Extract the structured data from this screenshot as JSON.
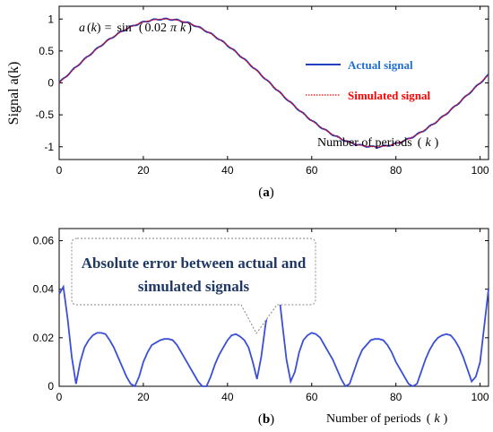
{
  "chart_data": [
    {
      "panel": "a",
      "type": "line",
      "equation": {
        "lhs_fn": "a",
        "lhs_var": "k",
        "rhs_fn": "sin",
        "coef": "0.02",
        "pi": "π",
        "var": "k"
      },
      "ylabel": "Signal a(k)",
      "xlabel_text": "Number of periods",
      "xlabel_var": "k",
      "xlim": [
        0,
        102
      ],
      "ylim": [
        -1.2,
        1.2
      ],
      "xticks": [
        0,
        20,
        40,
        60,
        80,
        100
      ],
      "yticks": [
        -1,
        -0.5,
        0,
        0.5,
        1
      ],
      "ytick_labels": [
        "-1",
        "-0.5",
        "0",
        "0.5",
        "1"
      ],
      "legend_position": "center-right",
      "series": [
        {
          "name": "Actual signal",
          "color": "#1f3fbf",
          "style": "solid",
          "function": "sin(0.02*pi*k)",
          "k_range": [
            0,
            102
          ]
        },
        {
          "name": "Simulated signal",
          "color": "#ff0000",
          "style": "dotted",
          "function": "sin(0.02*pi*k)",
          "k_range": [
            0,
            102
          ]
        }
      ],
      "label": "(a)",
      "label_letter": "a"
    },
    {
      "panel": "b",
      "type": "line",
      "xlabel_text": "Number of periods",
      "xlabel_var": "k",
      "xlim": [
        0,
        102
      ],
      "ylim": [
        0,
        0.065
      ],
      "xticks": [
        0,
        20,
        40,
        60,
        80,
        100
      ],
      "yticks": [
        0,
        0.02,
        0.04,
        0.06
      ],
      "ytick_labels": [
        "0",
        "0.02",
        "0.04",
        "0.06"
      ],
      "annotation_line1": "Absolute error between actual and",
      "annotation_line2": "simulated signals",
      "series": [
        {
          "name": "Absolute error",
          "color": "#3a4fd6",
          "x": [
            0,
            1,
            2,
            3,
            4,
            5,
            6,
            7,
            8,
            9,
            10,
            11,
            12,
            13,
            14,
            15,
            16,
            17,
            18,
            19,
            20,
            21,
            22,
            23,
            24,
            25,
            26,
            27,
            28,
            29,
            30,
            31,
            32,
            33,
            34,
            35,
            36,
            37,
            38,
            39,
            40,
            41,
            42,
            43,
            44,
            45,
            46,
            47,
            48,
            49,
            50,
            51,
            52,
            53,
            54,
            55,
            56,
            57,
            58,
            59,
            60,
            61,
            62,
            63,
            64,
            65,
            66,
            67,
            68,
            69,
            70,
            71,
            72,
            73,
            74,
            75,
            76,
            77,
            78,
            79,
            80,
            81,
            82,
            83,
            84,
            85,
            86,
            87,
            88,
            89,
            90,
            91,
            92,
            93,
            94,
            95,
            96,
            97,
            98,
            99,
            100,
            101,
            102
          ],
          "y": [
            0.038,
            0.041,
            0.028,
            0.012,
            0.001,
            0.01,
            0.016,
            0.019,
            0.021,
            0.022,
            0.022,
            0.0215,
            0.019,
            0.016,
            0.012,
            0.008,
            0.004,
            0.001,
            0.0,
            0.004,
            0.01,
            0.014,
            0.017,
            0.018,
            0.019,
            0.0195,
            0.0195,
            0.019,
            0.017,
            0.014,
            0.011,
            0.008,
            0.005,
            0.002,
            0.0,
            0.0,
            0.004,
            0.009,
            0.013,
            0.016,
            0.019,
            0.021,
            0.0215,
            0.0205,
            0.019,
            0.016,
            0.01,
            0.003,
            0.012,
            0.025,
            0.036,
            0.041,
            0.0415,
            0.026,
            0.011,
            0.002,
            0.006,
            0.014,
            0.019,
            0.021,
            0.022,
            0.0215,
            0.02,
            0.017,
            0.014,
            0.011,
            0.007,
            0.003,
            0.0,
            0.001,
            0.006,
            0.011,
            0.015,
            0.017,
            0.019,
            0.0195,
            0.0195,
            0.019,
            0.017,
            0.014,
            0.01,
            0.007,
            0.004,
            0.001,
            0.0,
            0.001,
            0.006,
            0.011,
            0.015,
            0.018,
            0.02,
            0.021,
            0.0215,
            0.021,
            0.019,
            0.016,
            0.012,
            0.007,
            0.002,
            0.004,
            0.01,
            0.025,
            0.04
          ]
        }
      ],
      "label": "(b)",
      "label_letter": "b"
    }
  ]
}
